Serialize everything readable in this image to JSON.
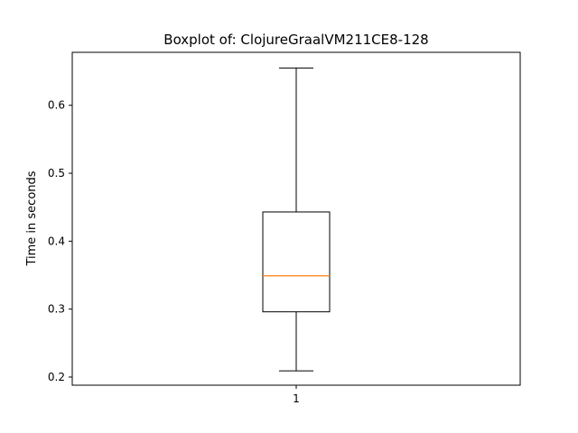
{
  "chart_data": {
    "type": "box",
    "title": "Boxplot of: ClojureGraalVM211CE8-128",
    "xlabel": "",
    "ylabel": "Time in seconds",
    "ylim": [
      0.188,
      0.678
    ],
    "yticks": [
      0.2,
      0.3,
      0.4,
      0.5,
      0.6
    ],
    "categories": [
      "1"
    ],
    "boxes": [
      {
        "label": "1",
        "whisker_low": 0.209,
        "q1": 0.296,
        "median": 0.349,
        "q3": 0.443,
        "whisker_high": 0.655
      }
    ],
    "grid": false,
    "colors": {
      "box": "#000000",
      "median": "#ff7f0e"
    }
  }
}
